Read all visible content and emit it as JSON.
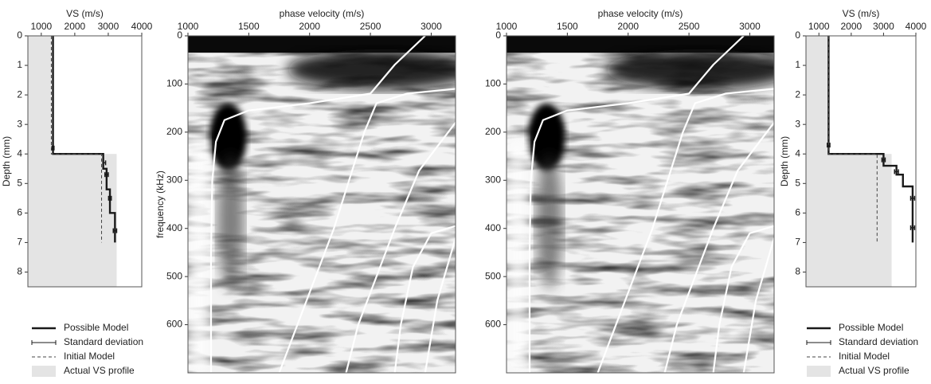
{
  "chart_data": [
    {
      "type": "profile",
      "xlabel": "VS (m/s)",
      "ylabel": "Depth (mm)",
      "xlim": [
        600,
        4000
      ],
      "xticks": [
        1000,
        2000,
        3000,
        4000
      ],
      "ylim": [
        0,
        8.5
      ],
      "yticks": [
        0,
        1,
        2,
        3,
        4,
        5,
        6,
        7,
        8
      ],
      "legend": "below",
      "series": [
        {
          "name": "Possible Model",
          "style": "line",
          "color": "#1a1a1a",
          "values": [
            1350,
            1350,
            2850,
            2850,
            2950,
            2950,
            3050,
            3050,
            3200,
            3200
          ],
          "depth": [
            0,
            4,
            4,
            4.5,
            4.5,
            5.2,
            5.2,
            6,
            6,
            7
          ]
        },
        {
          "name": "Standard deviation",
          "style": "errorbar",
          "color": "#1a1a1a",
          "values": [
            1350,
            2880,
            2950,
            3050,
            3200
          ],
          "errors": [
            30,
            40,
            50,
            40,
            50
          ],
          "depth": [
            3.8,
            4.3,
            4.7,
            5.5,
            6.6
          ]
        },
        {
          "name": "Initial Model",
          "style": "dashed",
          "color": "#444444",
          "values": [
            1300,
            1300,
            2800,
            2800
          ],
          "depth": [
            0,
            4,
            4,
            7
          ]
        },
        {
          "name": "Actual VS profile",
          "style": "area",
          "color": "#e4e4e4",
          "values": [
            1300,
            1300,
            3250,
            3250
          ],
          "depth": [
            0,
            4,
            4,
            8.5
          ]
        }
      ]
    },
    {
      "type": "dispersion",
      "xlabel": "phase velocity (m/s)",
      "ylabel": "frequency (kHz)",
      "xlim": [
        1000,
        3200
      ],
      "xticks": [
        1000,
        1500,
        2000,
        2500,
        3000
      ],
      "ylim": [
        0,
        700
      ],
      "yticks": [
        0,
        100,
        200,
        300,
        400,
        500,
        600
      ],
      "series": [
        {
          "color": "#ffffff",
          "x": [
            2950,
            2700,
            2500,
            2000,
            1500,
            1300,
            1230,
            1200,
            1190,
            1190
          ],
          "values": [
            0,
            60,
            120,
            140,
            155,
            175,
            220,
            300,
            450,
            700
          ]
        },
        {
          "color": "#ffffff",
          "x": [
            3200,
            2800,
            2550,
            2450,
            2350,
            2200,
            2050,
            1900,
            1750
          ],
          "values": [
            110,
            120,
            140,
            200,
            280,
            400,
            500,
            600,
            700
          ]
        },
        {
          "color": "#ffffff",
          "x": [
            3200,
            2900,
            2700,
            2550,
            2400,
            2300
          ],
          "values": [
            180,
            280,
            400,
            500,
            600,
            700
          ]
        },
        {
          "color": "#ffffff",
          "x": [
            3200,
            3000,
            2850,
            2750,
            2700
          ],
          "values": [
            395,
            410,
            480,
            600,
            700
          ]
        },
        {
          "color": "#ffffff",
          "x": [
            3200,
            3050,
            2950
          ],
          "values": [
            420,
            550,
            700
          ]
        }
      ]
    },
    {
      "type": "dispersion",
      "xlabel": "phase velocity (m/s)",
      "xlim": [
        1000,
        3200
      ],
      "xticks": [
        1000,
        1500,
        2000,
        2500,
        3000
      ],
      "ylim": [
        0,
        700
      ],
      "yticks": [
        0,
        100,
        200,
        300,
        400,
        500,
        600
      ],
      "series": [
        {
          "color": "#ffffff",
          "x": [
            2950,
            2700,
            2500,
            2000,
            1500,
            1300,
            1230,
            1200,
            1190,
            1190
          ],
          "values": [
            0,
            60,
            120,
            140,
            155,
            175,
            220,
            300,
            450,
            700
          ]
        },
        {
          "color": "#ffffff",
          "x": [
            3200,
            2800,
            2550,
            2450,
            2350,
            2200,
            2050,
            1900,
            1750
          ],
          "values": [
            110,
            120,
            140,
            200,
            280,
            400,
            500,
            600,
            700
          ]
        },
        {
          "color": "#ffffff",
          "x": [
            3200,
            2900,
            2700,
            2550,
            2400,
            2300
          ],
          "values": [
            180,
            280,
            400,
            500,
            600,
            700
          ]
        },
        {
          "color": "#ffffff",
          "x": [
            3200,
            3000,
            2850,
            2750,
            2700
          ],
          "values": [
            395,
            410,
            480,
            600,
            700
          ]
        },
        {
          "color": "#ffffff",
          "x": [
            3200,
            3050,
            2950
          ],
          "values": [
            420,
            550,
            700
          ]
        }
      ]
    },
    {
      "type": "profile",
      "xlabel": "VS (m/s)",
      "ylabel": "Depth (mm)",
      "xlim": [
        600,
        4000
      ],
      "xticks": [
        1000,
        2000,
        3000,
        4000
      ],
      "ylim": [
        0,
        8.5
      ],
      "yticks": [
        0,
        1,
        2,
        3,
        4,
        5,
        6,
        7,
        8
      ],
      "legend": "below",
      "series": [
        {
          "name": "Possible Model",
          "style": "line",
          "color": "#1a1a1a",
          "values": [
            1300,
            1300,
            3000,
            3000,
            3400,
            3400,
            3600,
            3600,
            3900,
            3900
          ],
          "depth": [
            0,
            4,
            4,
            4.4,
            4.4,
            4.7,
            4.7,
            5.1,
            5.1,
            7
          ]
        },
        {
          "name": "Standard deviation",
          "style": "errorbar",
          "color": "#1a1a1a",
          "values": [
            1300,
            3000,
            3400,
            3900,
            3900
          ],
          "errors": [
            40,
            50,
            60,
            60,
            60
          ],
          "depth": [
            3.7,
            4.2,
            4.6,
            5.5,
            6.5
          ]
        },
        {
          "name": "Initial Model",
          "style": "dashed",
          "color": "#444444",
          "values": [
            1300,
            1300,
            2800,
            2800
          ],
          "depth": [
            0,
            4,
            4,
            7
          ]
        },
        {
          "name": "Actual VS profile",
          "style": "area",
          "color": "#e4e4e4",
          "values": [
            1300,
            1300,
            3250,
            3250
          ],
          "depth": [
            0,
            4,
            4,
            8.5
          ]
        }
      ]
    }
  ]
}
